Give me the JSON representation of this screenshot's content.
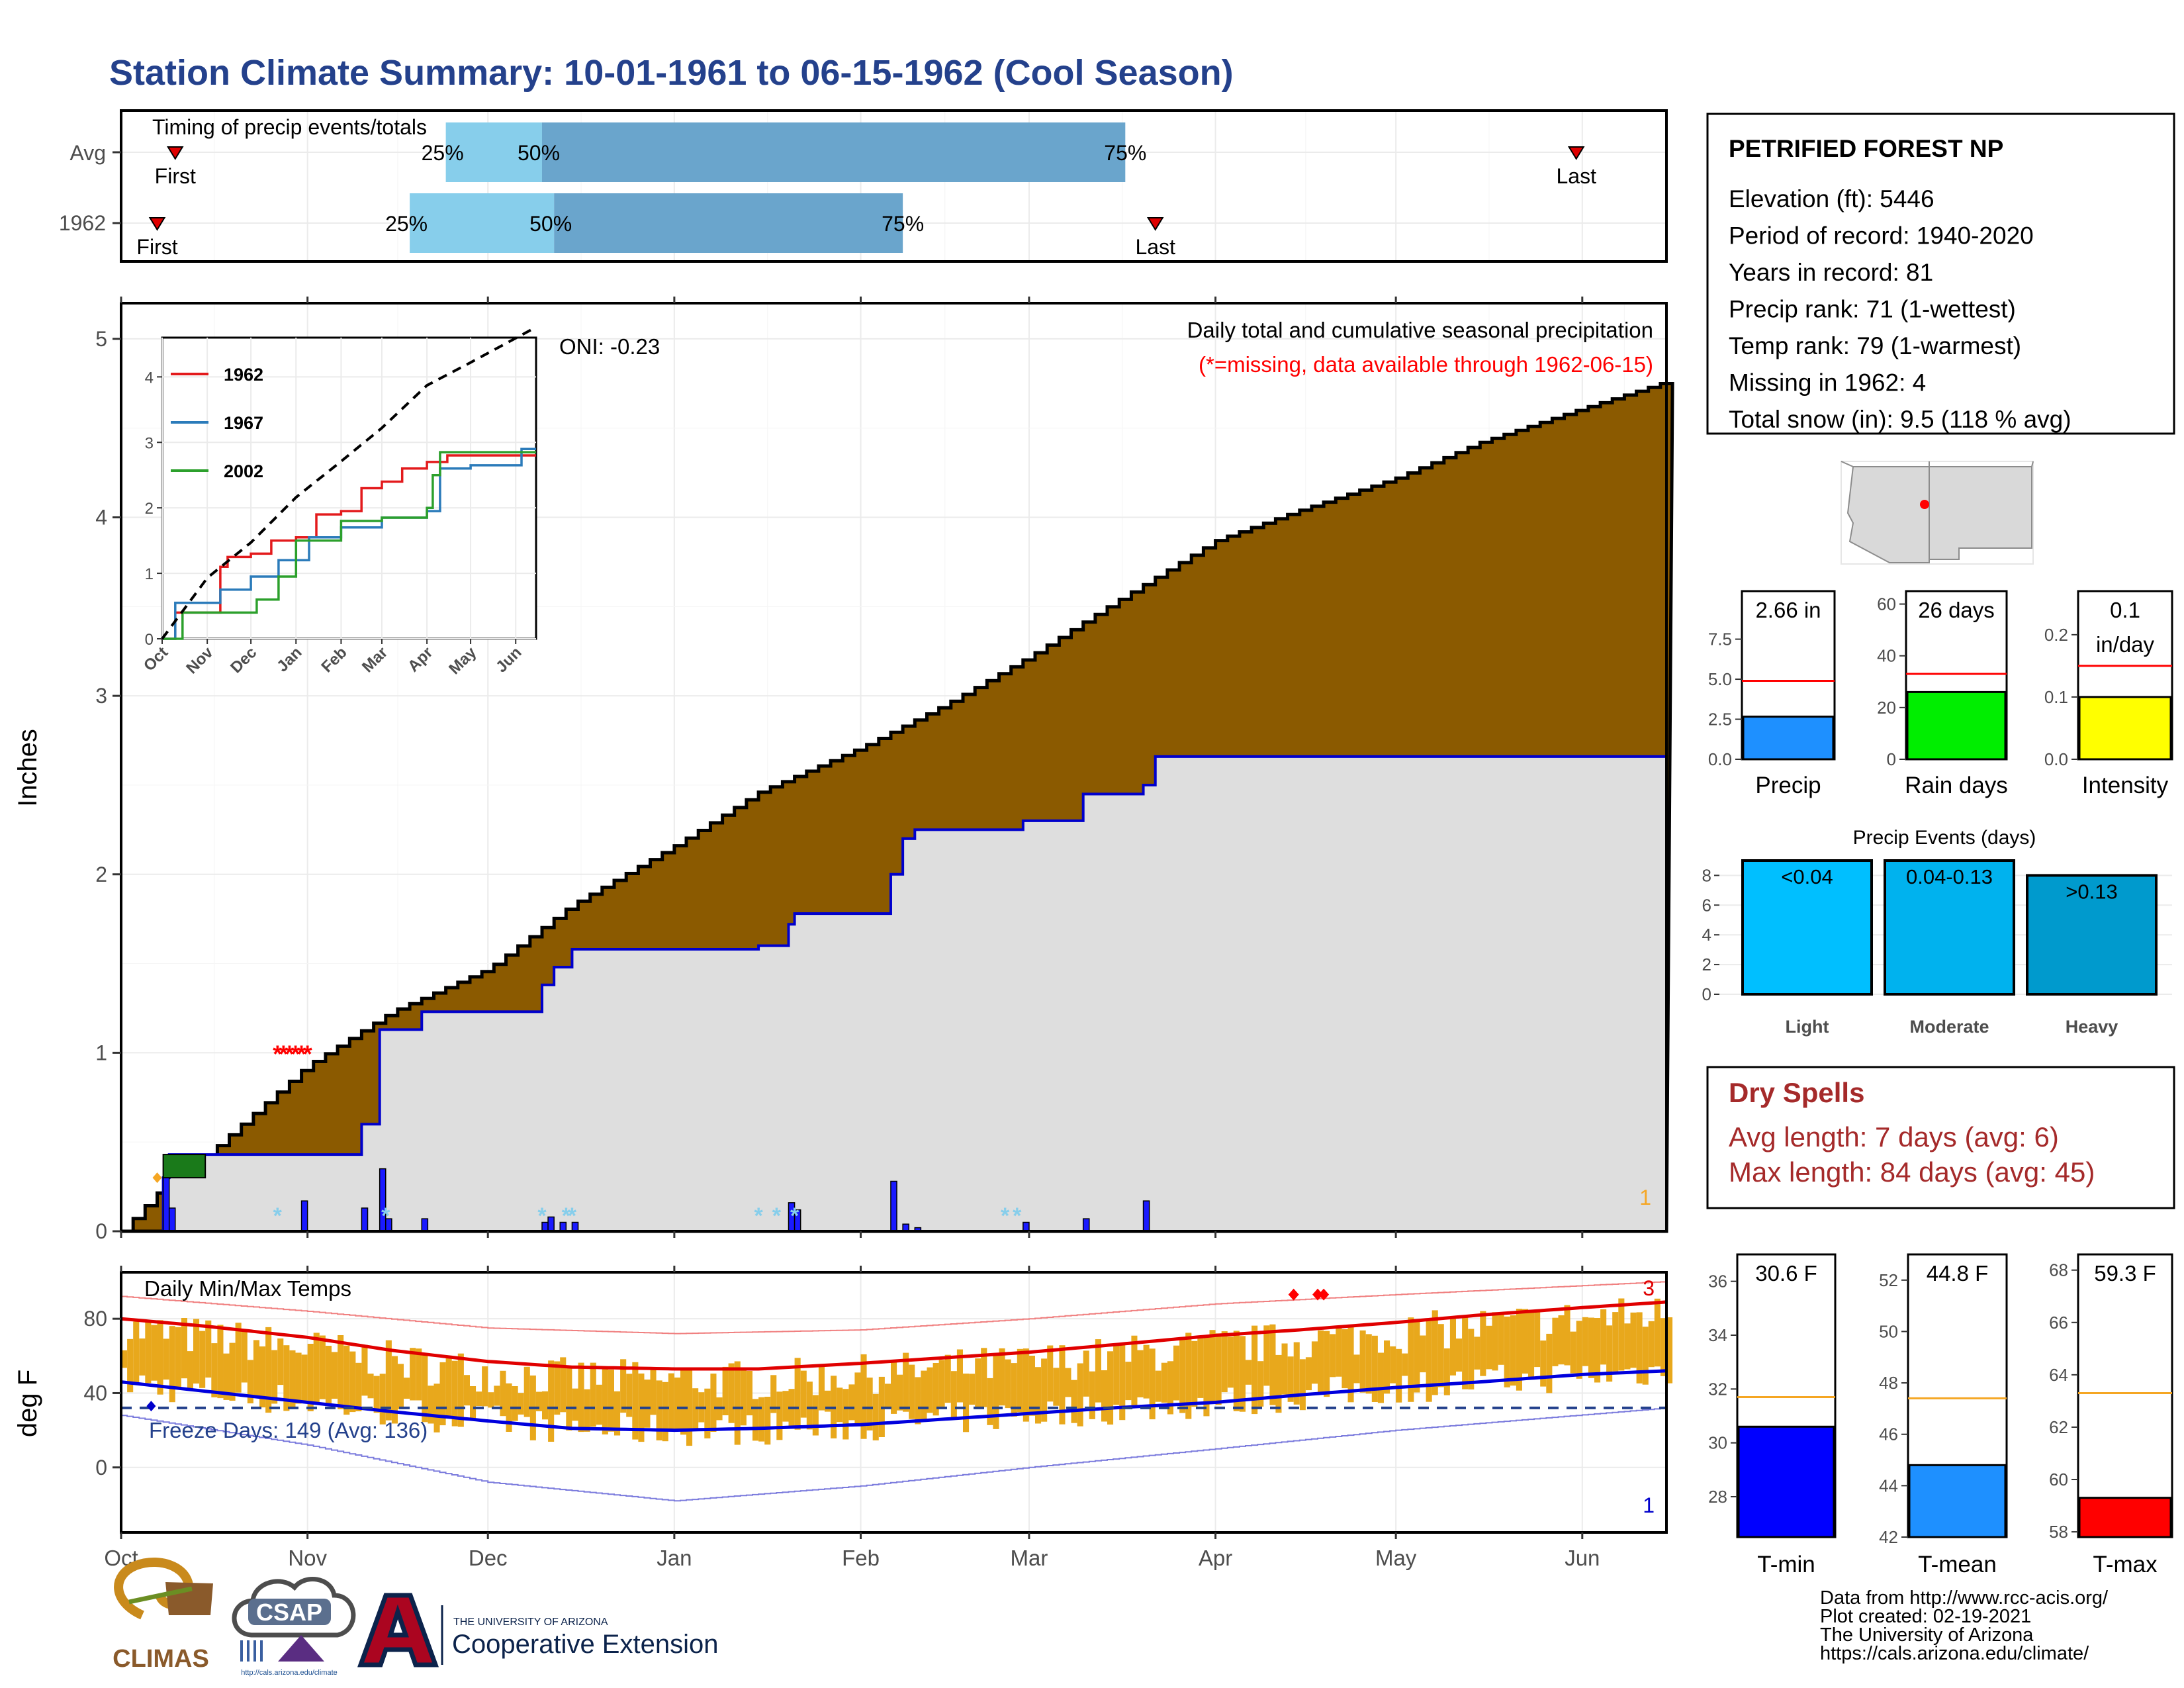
{
  "title": "Station Climate Summary: 10-01-1961 to 06-15-1962 (Cool Season)",
  "colors": {
    "title": "#24418c",
    "cum_avg_fill": "#8b5a00",
    "cum_year_fill": "#dedede",
    "year_line": "#0000cc",
    "daily_bar": "#1a1aff",
    "quartile_light": "#87ceeb",
    "quartile_dark": "#6aa5cc",
    "dry_spells": "#a52a2a",
    "temp_bar": "#e8a81c",
    "tmax_avg": "#e00000",
    "tmin_avg": "#0000dd",
    "avg_line": "#f5a623",
    "red_line": "#ff0000"
  },
  "timing": {
    "label": "Timing of precip events/totals",
    "rows": [
      {
        "row": "Avg",
        "first": "First",
        "last": "Last",
        "first_date": "1961-10-10",
        "last_date": "1962-05-31",
        "q25_date": "1961-11-24",
        "q50_date": "1961-12-10",
        "q75_date": "1962-03-17"
      },
      {
        "row": "1962",
        "first": "First",
        "last": "Last",
        "first_date": "1961-10-07",
        "last_date": "1962-03-22",
        "q25_date": "1961-11-18",
        "q50_date": "1961-12-12",
        "q75_date": "1962-02-08"
      }
    ],
    "q25": "25%",
    "q50": "50%",
    "q75": "75%"
  },
  "station": {
    "name": "PETRIFIED FOREST NP",
    "lines": [
      "Elevation (ft): 5446",
      "Period of record: 1940-2020",
      "Years in record: 81",
      "Precip rank: 71 (1-wettest)",
      "Temp rank: 79 (1-warmest)",
      "Missing in 1962: 4",
      "Total snow (in): 9.5 (118 % avg)"
    ]
  },
  "chart_data": [
    {
      "type": "area",
      "panel": "cumulative-precip",
      "title": "Daily total and cumulative seasonal precipitation",
      "subtitle": "(*=missing, data available through 1962-06-15)",
      "oni": "ONI: -0.23",
      "ylabel": "Inches",
      "ylim": [
        0,
        5.2
      ],
      "yticks": [
        0,
        1,
        2,
        3,
        4,
        5
      ],
      "corner_label": "1",
      "x_months": [
        "Oct",
        "Nov",
        "Dec",
        "Jan",
        "Feb",
        "Mar",
        "Apr",
        "May",
        "Jun"
      ],
      "series": [
        {
          "name": "Average cumulative",
          "x": [
            "1961-10-01",
            "1961-10-08",
            "1961-10-15",
            "1961-11-01",
            "1961-11-15",
            "1961-12-01",
            "1961-12-15",
            "1962-01-01",
            "1962-01-15",
            "1962-02-01",
            "1962-02-15",
            "1962-03-01",
            "1962-03-15",
            "1962-04-01",
            "1962-04-15",
            "1962-05-01",
            "1962-05-15",
            "1962-06-01",
            "1962-06-15"
          ],
          "values": [
            0,
            0.25,
            0.42,
            0.93,
            1.23,
            1.47,
            1.83,
            2.16,
            2.46,
            2.71,
            2.95,
            3.22,
            3.52,
            3.87,
            4.04,
            4.22,
            4.42,
            4.61,
            4.76
          ]
        },
        {
          "name": "1962 cumulative",
          "x": [
            "1961-10-01",
            "1961-10-08",
            "1961-10-09",
            "1961-10-31",
            "1961-11-10",
            "1961-11-13",
            "1961-11-20",
            "1961-12-10",
            "1961-12-12",
            "1961-12-15",
            "1962-01-15",
            "1962-01-20",
            "1962-01-21",
            "1962-02-06",
            "1962-02-08",
            "1962-02-10",
            "1962-02-28",
            "1962-03-10",
            "1962-03-20",
            "1962-03-22",
            "1962-06-15"
          ],
          "values": [
            0,
            0.3,
            0.43,
            0.43,
            0.6,
            1.13,
            1.23,
            1.38,
            1.48,
            1.58,
            1.6,
            1.72,
            1.78,
            2.0,
            2.2,
            2.25,
            2.3,
            2.45,
            2.5,
            2.66,
            2.66
          ]
        },
        {
          "name": "daily",
          "x": [
            "1961-10-08",
            "1961-10-09",
            "1961-10-31",
            "1961-11-10",
            "1961-11-13",
            "1961-11-14",
            "1961-11-20",
            "1961-12-10",
            "1961-12-11",
            "1961-12-13",
            "1961-12-15",
            "1962-01-20",
            "1962-01-21",
            "1962-02-06",
            "1962-02-08",
            "1962-02-10",
            "1962-02-28",
            "1962-03-10",
            "1962-03-20"
          ],
          "values": [
            0.3,
            0.13,
            0.17,
            0.13,
            0.35,
            0.07,
            0.07,
            0.05,
            0.08,
            0.05,
            0.05,
            0.16,
            0.12,
            0.28,
            0.04,
            0.02,
            0.05,
            0.07,
            0.17
          ]
        }
      ]
    },
    {
      "type": "line",
      "panel": "inset",
      "yticks": [
        0,
        1,
        2,
        3,
        4
      ],
      "ylim": [
        0,
        4.6
      ],
      "x_months": [
        "Oct",
        "Nov",
        "Dec",
        "Jan",
        "Feb",
        "Mar",
        "Apr",
        "May",
        "Jun"
      ],
      "series": [
        {
          "name": "1962",
          "color": "#e31a1c",
          "x": [
            "1961-10-01",
            "1961-10-10",
            "1961-11-01",
            "1961-11-10",
            "1961-11-15",
            "1961-12-01",
            "1961-12-15",
            "1962-01-01",
            "1962-01-15",
            "1962-02-01",
            "1962-02-15",
            "1962-03-01",
            "1962-03-15",
            "1962-04-01",
            "1962-04-15",
            "1962-06-15"
          ],
          "values": [
            0,
            0.4,
            0.4,
            1.1,
            1.25,
            1.3,
            1.5,
            1.55,
            1.9,
            1.95,
            2.3,
            2.4,
            2.6,
            2.7,
            2.8,
            2.8
          ]
        },
        {
          "name": "1967",
          "color": "#2b7bba",
          "x": [
            "1961-10-01",
            "1961-10-10",
            "1961-11-01",
            "1961-11-10",
            "1961-12-01",
            "1961-12-20",
            "1962-01-10",
            "1962-02-01",
            "1962-03-01",
            "1962-04-01",
            "1962-04-10",
            "1962-05-01",
            "1962-06-05",
            "1962-06-15"
          ],
          "values": [
            0,
            0.55,
            0.55,
            0.75,
            0.95,
            1.2,
            1.55,
            1.7,
            1.85,
            1.95,
            2.6,
            2.65,
            2.9,
            2.9
          ]
        },
        {
          "name": "2002",
          "color": "#2ca02c",
          "x": [
            "1961-10-01",
            "1961-10-15",
            "1961-11-25",
            "1961-12-05",
            "1961-12-20",
            "1962-01-01",
            "1962-02-01",
            "1962-03-01",
            "1962-04-01",
            "1962-04-05",
            "1962-04-10",
            "1962-06-15"
          ],
          "values": [
            0,
            0.4,
            0.4,
            0.6,
            0.95,
            1.5,
            1.8,
            1.85,
            2.0,
            2.5,
            2.85,
            2.85
          ]
        },
        {
          "name": "avg",
          "color": "#000000",
          "x": [
            "1961-10-01",
            "1961-11-01",
            "1961-12-01",
            "1962-01-01",
            "1962-02-01",
            "1962-03-01",
            "1962-04-01",
            "1962-05-01",
            "1962-06-15"
          ],
          "values": [
            0,
            0.93,
            1.47,
            2.16,
            2.71,
            3.22,
            3.87,
            4.22,
            4.76
          ]
        }
      ]
    },
    {
      "type": "bar",
      "panel": "precip-totals",
      "categories": [
        "Precip",
        "Rain days",
        "Intensity"
      ],
      "values": [
        2.66,
        26,
        0.1
      ],
      "averages": [
        4.9,
        33,
        0.15
      ],
      "labels": [
        "2.66 in",
        "26 days",
        "0.1 in/day"
      ],
      "yticks": [
        [
          0.0,
          2.5,
          5.0,
          7.5
        ],
        [
          0,
          20,
          40,
          60
        ],
        [
          0.0,
          0.1,
          0.2
        ]
      ],
      "ytick_labels": [
        [
          "0.0",
          "2.5",
          "5.0",
          "7.5"
        ],
        [
          "0",
          "20",
          "40",
          "60"
        ],
        [
          "0.0",
          "0.1",
          "0.2"
        ]
      ],
      "ylims": [
        [
          0,
          10.5
        ],
        [
          0,
          65
        ],
        [
          0,
          0.27
        ]
      ],
      "bar_colors": [
        "#1e90ff",
        "#00ee00",
        "#ffff00"
      ]
    },
    {
      "type": "bar",
      "panel": "precip-events",
      "title": "Precip Events (days)",
      "categories": [
        "Light",
        "Moderate",
        "Heavy"
      ],
      "values": [
        9,
        9,
        8
      ],
      "labels": [
        "<0.04",
        "0.04-0.13",
        ">0.13"
      ],
      "yticks": [
        0,
        2,
        4,
        6,
        8
      ],
      "ylim": [
        0,
        9
      ],
      "bar_colors": [
        "#00bfff",
        "#00b2ee",
        "#009acd"
      ]
    },
    {
      "type": "bar",
      "panel": "temperature",
      "title": "Daily Min/Max Temps",
      "ylabel": "deg F",
      "ylim": [
        -35,
        105
      ],
      "yticks": [
        0,
        40,
        80
      ],
      "freeze_label": "Freeze Days: 149 (Avg: 136)",
      "freeze_line": 32,
      "top_right_label": "3",
      "bottom_right_label": "1",
      "x_months": [
        "Oct",
        "Nov",
        "Dec",
        "Jan",
        "Feb",
        "Mar",
        "Apr",
        "May",
        "Jun"
      ],
      "series": [
        {
          "name": "avg max",
          "x": [
            "1961-10-01",
            "1961-10-15",
            "1961-11-01",
            "1961-11-15",
            "1961-12-01",
            "1961-12-15",
            "1962-01-01",
            "1962-01-15",
            "1962-02-01",
            "1962-02-15",
            "1962-03-01",
            "1962-03-15",
            "1962-04-01",
            "1962-04-15",
            "1962-05-01",
            "1962-05-15",
            "1962-06-01",
            "1962-06-15"
          ],
          "values": [
            80,
            76,
            70,
            63,
            57,
            54,
            53,
            53,
            56,
            59,
            62,
            66,
            71,
            74,
            78,
            82,
            86,
            89
          ]
        },
        {
          "name": "avg min",
          "x": [
            "1961-10-01",
            "1961-10-15",
            "1961-11-01",
            "1961-11-15",
            "1961-12-01",
            "1961-12-15",
            "1962-01-01",
            "1962-01-15",
            "1962-02-01",
            "1962-02-15",
            "1962-03-01",
            "1962-03-15",
            "1962-04-01",
            "1962-04-15",
            "1962-05-01",
            "1962-05-15",
            "1962-06-01",
            "1962-06-15"
          ],
          "values": [
            46,
            41,
            35,
            30,
            25,
            21,
            20,
            21,
            23,
            26,
            29,
            32,
            35,
            39,
            43,
            46,
            50,
            52
          ]
        },
        {
          "name": "record max",
          "x": [
            "1961-10-01",
            "1961-11-01",
            "1961-12-01",
            "1962-01-01",
            "1962-02-01",
            "1962-03-01",
            "1962-04-01",
            "1962-05-01",
            "1962-06-15"
          ],
          "values": [
            92,
            84,
            75,
            72,
            74,
            80,
            88,
            93,
            100
          ]
        },
        {
          "name": "record min",
          "x": [
            "1961-10-01",
            "1961-11-01",
            "1961-12-01",
            "1962-01-01",
            "1962-02-01",
            "1962-03-01",
            "1962-04-01",
            "1962-05-01",
            "1962-06-15"
          ],
          "values": [
            28,
            12,
            -8,
            -18,
            -10,
            0,
            10,
            20,
            32
          ]
        }
      ]
    },
    {
      "type": "bar",
      "panel": "temp-summary",
      "categories": [
        "T-min",
        "T-mean",
        "T-max"
      ],
      "values": [
        30.6,
        44.8,
        59.3
      ],
      "averages": [
        31.7,
        47.4,
        63.3
      ],
      "labels": [
        "30.6 F",
        "44.8 F",
        "59.3 F"
      ],
      "ylims": [
        [
          26.5,
          37
        ],
        [
          42,
          53
        ],
        [
          57.8,
          68.6
        ]
      ],
      "yticks": [
        [
          28,
          30,
          32,
          34,
          36
        ],
        [
          42,
          44,
          46,
          48,
          50,
          52
        ],
        [
          58,
          60,
          62,
          64,
          66,
          68
        ]
      ],
      "bar_colors": [
        "#0000ff",
        "#1e90ff",
        "#ff0000"
      ]
    }
  ],
  "dry_spells": {
    "title": "Dry Spells",
    "lines": [
      "Avg length: 7 days (avg: 6)",
      "Max length: 84 days (avg: 45)"
    ]
  },
  "logos": {
    "climas": "CLIMAS",
    "csap": "CSAP",
    "csap_url": "http://cals.arizona.edu/climate",
    "ua_small": "THE UNIVERSITY OF ARIZONA",
    "ua_big": "Cooperative Extension"
  },
  "footer": [
    "Data from http://www.rcc-acis.org/",
    "Plot created: 02-19-2021",
    "The University of Arizona",
    "https://cals.arizona.edu/climate/"
  ]
}
